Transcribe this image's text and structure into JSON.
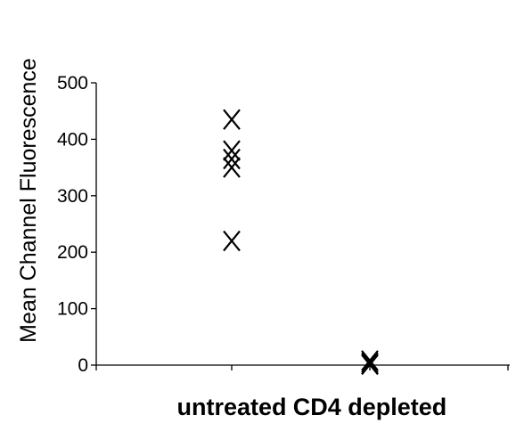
{
  "chart_data": {
    "type": "scatter",
    "title": "",
    "xlabel": "",
    "ylabel": "Mean Channel Fluorescence",
    "categories": [
      "untreated",
      "CD4 depleted"
    ],
    "yticks": [
      0,
      100,
      200,
      300,
      400,
      500
    ],
    "ylim": [
      0,
      500
    ],
    "marker": "x",
    "color": "#000000",
    "grid": false,
    "legend": "none",
    "series": [
      {
        "points": [
          {
            "category": "untreated",
            "y": 435
          },
          {
            "category": "untreated",
            "y": 380
          },
          {
            "category": "untreated",
            "y": 365
          },
          {
            "category": "untreated",
            "y": 350
          },
          {
            "category": "untreated",
            "y": 220
          },
          {
            "category": "CD4 depleted",
            "y": 8
          },
          {
            "category": "CD4 depleted",
            "y": 4
          },
          {
            "category": "CD4 depleted",
            "y": 1
          }
        ]
      }
    ]
  }
}
